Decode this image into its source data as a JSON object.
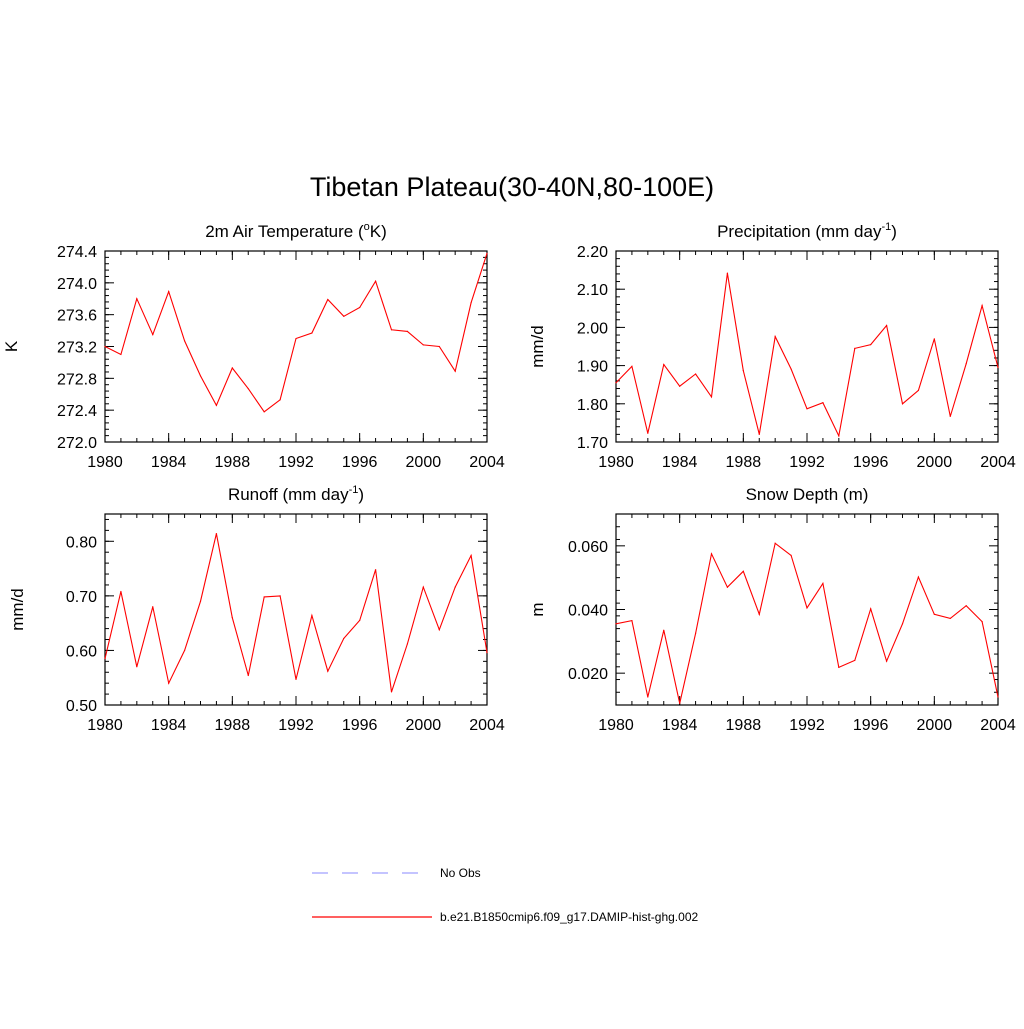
{
  "page_title": "Tibetan Plateau(30-40N,80-100E)",
  "legend": {
    "entries": [
      {
        "label": "No Obs",
        "color": "#a0a0ff",
        "style": "dashed"
      },
      {
        "label": "b.e21.B1850cmip6.f09_g17.DAMIP-hist-ghg.002",
        "color": "#ff0000",
        "style": "solid"
      }
    ]
  },
  "chart_data": [
    {
      "type": "line",
      "title": "2m Air Temperature (",
      "title_sup": "o",
      "title_after_sup": "K)",
      "ylabel": "K",
      "xlim": [
        1980,
        2004
      ],
      "ylim": [
        272.0,
        274.4
      ],
      "x_ticks": [
        1980,
        1984,
        1988,
        1992,
        1996,
        2000,
        2004
      ],
      "y_ticks": [
        "272.0",
        "272.4",
        "272.8",
        "273.2",
        "273.6",
        "274.0",
        "274.4"
      ],
      "x": [
        1980,
        1981,
        1982,
        1983,
        1984,
        1985,
        1986,
        1987,
        1988,
        1989,
        1990,
        1991,
        1992,
        1993,
        1994,
        1995,
        1996,
        1997,
        1998,
        1999,
        2000,
        2001,
        2002,
        2003,
        2004
      ],
      "series": [
        {
          "color": "#ff0000",
          "values": [
            273.2,
            273.1,
            273.8,
            273.35,
            273.89,
            273.27,
            272.83,
            272.46,
            272.93,
            272.67,
            272.38,
            272.53,
            273.3,
            273.37,
            273.79,
            273.58,
            273.69,
            274.02,
            273.41,
            273.39,
            273.22,
            273.2,
            272.89,
            273.75,
            274.37
          ]
        }
      ]
    },
    {
      "type": "line",
      "title": "Precipitation (mm day",
      "title_sup": "-1",
      "title_after_sup": ")",
      "ylabel": "mm/d",
      "xlim": [
        1980,
        2004
      ],
      "ylim": [
        1.7,
        2.2
      ],
      "x_ticks": [
        1980,
        1984,
        1988,
        1992,
        1996,
        2000,
        2004
      ],
      "y_ticks": [
        "1.70",
        "1.80",
        "1.90",
        "2.00",
        "2.10",
        "2.20"
      ],
      "x": [
        1980,
        1981,
        1982,
        1983,
        1984,
        1985,
        1986,
        1987,
        1988,
        1989,
        1990,
        1991,
        1992,
        1993,
        1994,
        1995,
        1996,
        1997,
        1998,
        1999,
        2000,
        2001,
        2002,
        2003,
        2004
      ],
      "series": [
        {
          "color": "#ff0000",
          "values": [
            1.855,
            1.898,
            1.723,
            1.903,
            1.846,
            1.878,
            1.818,
            2.142,
            1.887,
            1.72,
            1.976,
            1.891,
            1.787,
            1.803,
            1.716,
            1.945,
            1.955,
            2.005,
            1.8,
            1.835,
            1.97,
            1.767,
            1.905,
            2.057,
            1.895
          ]
        }
      ]
    },
    {
      "type": "line",
      "title": "Runoff (mm day",
      "title_sup": "-1",
      "title_after_sup": ")",
      "ylabel": "mm/d",
      "xlim": [
        1980,
        2004
      ],
      "ylim": [
        0.5,
        0.85
      ],
      "x_ticks": [
        1980,
        1984,
        1988,
        1992,
        1996,
        2000,
        2004
      ],
      "y_ticks": [
        "0.50",
        "0.60",
        "0.70",
        "0.80"
      ],
      "y_tick_values": [
        0.5,
        0.6,
        0.7,
        0.8
      ],
      "x": [
        1980,
        1981,
        1982,
        1983,
        1984,
        1985,
        1986,
        1987,
        1988,
        1989,
        1990,
        1991,
        1992,
        1993,
        1994,
        1995,
        1996,
        1997,
        1998,
        1999,
        2000,
        2001,
        2002,
        2003,
        2004
      ],
      "series": [
        {
          "color": "#ff0000",
          "values": [
            0.585,
            0.708,
            0.57,
            0.68,
            0.54,
            0.6,
            0.69,
            0.814,
            0.66,
            0.554,
            0.698,
            0.7,
            0.547,
            0.664,
            0.562,
            0.622,
            0.655,
            0.748,
            0.524,
            0.612,
            0.716,
            0.638,
            0.716,
            0.774,
            0.596
          ]
        }
      ]
    },
    {
      "type": "line",
      "title": "Snow Depth (m)",
      "title_sup": "",
      "title_after_sup": "",
      "ylabel": "m",
      "xlim": [
        1980,
        2004
      ],
      "ylim": [
        0.01,
        0.07
      ],
      "x_ticks": [
        1980,
        1984,
        1988,
        1992,
        1996,
        2000,
        2004
      ],
      "y_ticks": [
        "0.020",
        "0.040",
        "0.060"
      ],
      "y_tick_values": [
        0.02,
        0.04,
        0.06
      ],
      "x": [
        1980,
        1981,
        1982,
        1983,
        1984,
        1985,
        1986,
        1987,
        1988,
        1989,
        1990,
        1991,
        1992,
        1993,
        1994,
        1995,
        1996,
        1997,
        1998,
        1999,
        2000,
        2001,
        2002,
        2003,
        2004
      ],
      "series": [
        {
          "color": "#ff0000",
          "values": [
            0.0355,
            0.0365,
            0.0125,
            0.0335,
            0.0105,
            0.0325,
            0.0575,
            0.047,
            0.052,
            0.0385,
            0.0608,
            0.057,
            0.0405,
            0.0482,
            0.0218,
            0.024,
            0.0402,
            0.0238,
            0.0355,
            0.0502,
            0.0385,
            0.0372,
            0.0412,
            0.0362,
            0.0125
          ]
        }
      ]
    }
  ]
}
